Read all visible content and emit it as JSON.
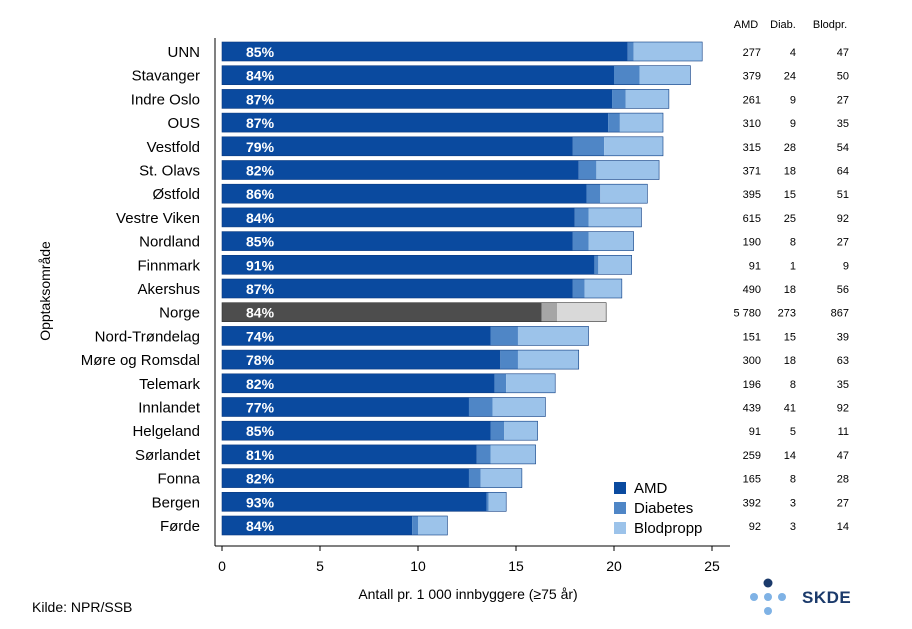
{
  "chart_data": {
    "type": "bar",
    "orientation": "horizontal",
    "stacked": true,
    "ylabel": "Opptaksområde",
    "xlabel": "Antall pr. 1 000 innbyggere (≥75 år)",
    "xlim": [
      0,
      25
    ],
    "xticks": [
      0,
      5,
      10,
      15,
      20,
      25
    ],
    "categories": [
      "UNN",
      "Stavanger",
      "Indre Oslo",
      "OUS",
      "Vestfold",
      "St. Olavs",
      "Østfold",
      "Vestre Viken",
      "Nordland",
      "Finnmark",
      "Akershus",
      "Norge",
      "Nord-Trøndelag",
      "Møre og Romsdal",
      "Telemark",
      "Innlandet",
      "Helgeland",
      "Sørlandet",
      "Fonna",
      "Bergen",
      "Førde"
    ],
    "highlight_category": "Norge",
    "percent_labels": [
      "85%",
      "84%",
      "87%",
      "87%",
      "79%",
      "82%",
      "86%",
      "84%",
      "85%",
      "91%",
      "87%",
      "84%",
      "74%",
      "78%",
      "82%",
      "77%",
      "85%",
      "81%",
      "82%",
      "93%",
      "84%"
    ],
    "series": [
      {
        "name": "AMD",
        "color": "#0a4a9f",
        "highlight_color": "#4d4d4d",
        "values": [
          20.7,
          20.0,
          19.9,
          19.7,
          17.9,
          18.2,
          18.6,
          18.0,
          17.9,
          19.0,
          17.9,
          16.3,
          13.7,
          14.2,
          13.9,
          12.6,
          13.7,
          13.0,
          12.6,
          13.5,
          9.7
        ]
      },
      {
        "name": "Diabetes",
        "color": "#4f86c6",
        "highlight_color": "#a6a6a6",
        "values": [
          0.3,
          1.3,
          0.7,
          0.6,
          1.6,
          0.9,
          0.7,
          0.7,
          0.8,
          0.2,
          0.6,
          0.8,
          1.4,
          0.9,
          0.6,
          1.2,
          0.7,
          0.7,
          0.6,
          0.1,
          0.3
        ]
      },
      {
        "name": "Blodpropp",
        "color": "#9cc3ea",
        "highlight_color": "#d9d9d9",
        "values": [
          3.5,
          2.6,
          2.2,
          2.2,
          3.0,
          3.2,
          2.4,
          2.7,
          2.3,
          1.7,
          1.9,
          2.5,
          3.6,
          3.1,
          2.5,
          2.7,
          1.7,
          2.3,
          2.1,
          0.9,
          1.5
        ]
      }
    ],
    "legend": [
      "AMD",
      "Diabetes",
      "Blodpropp"
    ],
    "legend_position": "bottom-right"
  },
  "table": {
    "headers": [
      "AMD",
      "Diab.",
      "Blodpr."
    ],
    "rows": [
      [
        "277",
        "4",
        "47"
      ],
      [
        "379",
        "24",
        "50"
      ],
      [
        "261",
        "9",
        "27"
      ],
      [
        "310",
        "9",
        "35"
      ],
      [
        "315",
        "28",
        "54"
      ],
      [
        "371",
        "18",
        "64"
      ],
      [
        "395",
        "15",
        "51"
      ],
      [
        "615",
        "25",
        "92"
      ],
      [
        "190",
        "8",
        "27"
      ],
      [
        "91",
        "1",
        "9"
      ],
      [
        "490",
        "18",
        "56"
      ],
      [
        "5 780",
        "273",
        "867"
      ],
      [
        "151",
        "15",
        "39"
      ],
      [
        "300",
        "18",
        "63"
      ],
      [
        "196",
        "8",
        "35"
      ],
      [
        "439",
        "41",
        "92"
      ],
      [
        "91",
        "5",
        "11"
      ],
      [
        "259",
        "14",
        "47"
      ],
      [
        "165",
        "8",
        "28"
      ],
      [
        "392",
        "3",
        "27"
      ],
      [
        "92",
        "3",
        "14"
      ]
    ]
  },
  "source_note": "Kilde: NPR/SSB",
  "logo": {
    "text": "SKDE",
    "dot_dark": "#1b3a6b",
    "dot_light": "#7fb2e5"
  }
}
